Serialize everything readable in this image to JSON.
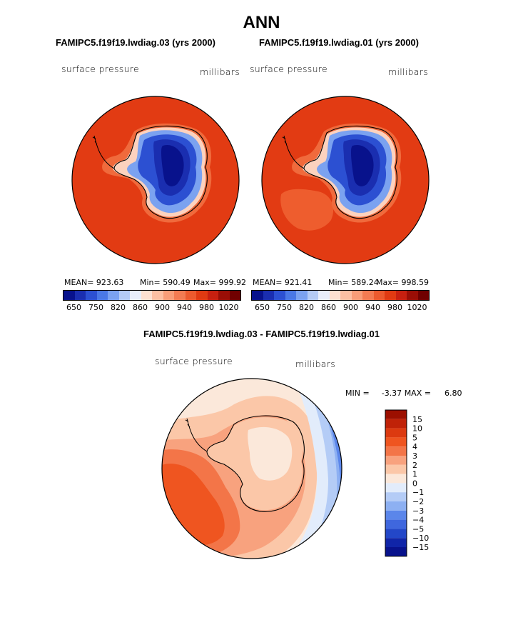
{
  "page_title": "ANN",
  "chart_data": [
    {
      "type": "heatmap",
      "projection": "south polar stereographic",
      "title": "FAMIPC5.f19f19.lwdiag.03 (yrs 2000)",
      "variable": "surface pressure",
      "units": "millibars",
      "stats": {
        "mean": "MEAN= 923.63",
        "min": "Min= 590.49",
        "max": "Max= 999.92"
      },
      "colorbar": {
        "tick_labels": [
          "650",
          "750",
          "820",
          "860",
          "900",
          "940",
          "980",
          "1020"
        ],
        "colors": [
          "#08128c",
          "#1a2eb0",
          "#2c50d2",
          "#4a78e6",
          "#7ba2f0",
          "#b4cbf5",
          "#e8eefa",
          "#fde0d0",
          "#fcbfa2",
          "#f89d78",
          "#f37b52",
          "#ec5a2e",
          "#e03a12",
          "#c72010",
          "#9a0e06",
          "#700000"
        ]
      }
    },
    {
      "type": "heatmap",
      "projection": "south polar stereographic",
      "title": "FAMIPC5.f19f19.lwdiag.01 (yrs 2000)",
      "variable": "surface pressure",
      "units": "millibars",
      "stats": {
        "mean": "MEAN= 921.41",
        "min": "Min= 589.24",
        "max": "Max= 998.59"
      },
      "colorbar": {
        "tick_labels": [
          "650",
          "750",
          "820",
          "860",
          "900",
          "940",
          "980",
          "1020"
        ],
        "colors": [
          "#08128c",
          "#1a2eb0",
          "#2c50d2",
          "#4a78e6",
          "#7ba2f0",
          "#b4cbf5",
          "#e8eefa",
          "#fde0d0",
          "#fcbfa2",
          "#f89d78",
          "#f37b52",
          "#ec5a2e",
          "#e03a12",
          "#c72010",
          "#9a0e06",
          "#700000"
        ]
      }
    },
    {
      "type": "heatmap",
      "projection": "south polar stereographic",
      "title": "FAMIPC5.f19f19.lwdiag.03 - FAMIPC5.f19f19.lwdiag.01",
      "variable": "surface pressure",
      "units": "millibars",
      "stats": {
        "min_label": "MIN =",
        "min": "-3.37",
        "max_label": "MAX =",
        "max": "6.80"
      },
      "colorbar": {
        "levels": [
          "15",
          "10",
          "5",
          "4",
          "3",
          "2",
          "1",
          "0",
          "−1",
          "−2",
          "−3",
          "−4",
          "−5",
          "−10",
          "−15"
        ],
        "colors": [
          "#9c0f00",
          "#c02208",
          "#dc3a10",
          "#ef5520",
          "#f37548",
          "#f8a27e",
          "#fbc7a8",
          "#fbe8da",
          "#e2ecfb",
          "#b4ccf6",
          "#8db0f2",
          "#5b86ea",
          "#3f67de",
          "#2347c8",
          "#1025a8",
          "#08128c"
        ]
      }
    }
  ]
}
